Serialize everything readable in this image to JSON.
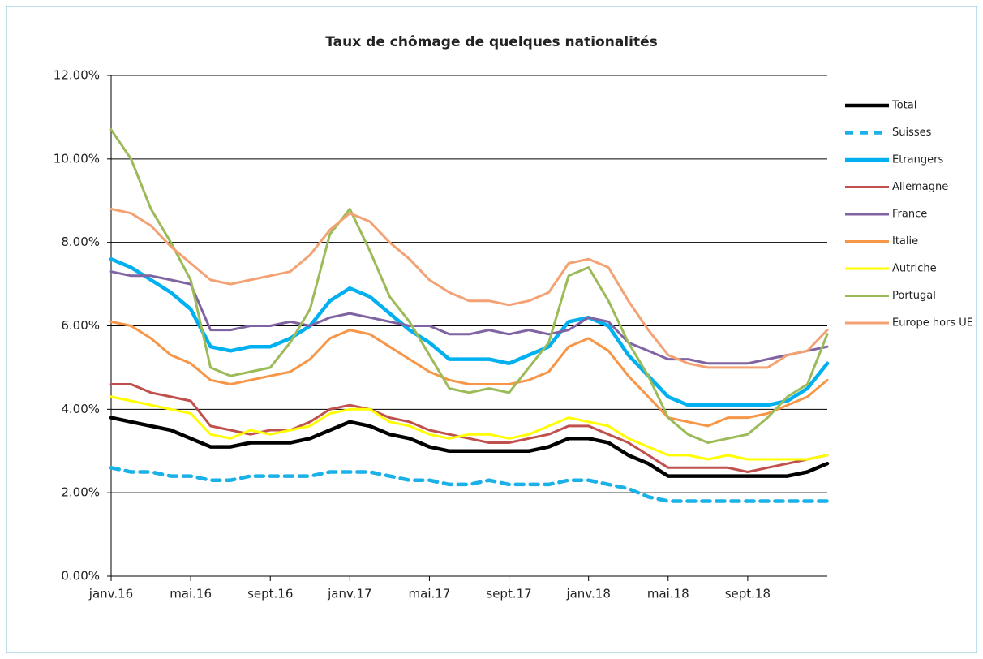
{
  "chart_data": {
    "type": "line",
    "title": "Taux de chômage de quelques nationalités",
    "categories": [
      "janv.16",
      null,
      null,
      null,
      "mai.16",
      null,
      null,
      null,
      "sept.16",
      null,
      null,
      null,
      "janv.17",
      null,
      null,
      null,
      "mai.17",
      null,
      null,
      null,
      "sept.17",
      null,
      null,
      null,
      "janv.18",
      null,
      null,
      null,
      "mai.18",
      null,
      null,
      null,
      "sept.18",
      null,
      null,
      null,
      null
    ],
    "ylim": [
      0,
      12
    ],
    "yticks": [
      {
        "value": 0,
        "label": "0.00%"
      },
      {
        "value": 2,
        "label": "2.00%"
      },
      {
        "value": 4,
        "label": "4.00%"
      },
      {
        "value": 6,
        "label": "6.00%"
      },
      {
        "value": 8,
        "label": "8.00%"
      },
      {
        "value": 10,
        "label": "10.00%"
      },
      {
        "value": 12,
        "label": "12.00%"
      }
    ],
    "grid": true,
    "legend": "right",
    "series": [
      {
        "name": "Total",
        "color": "#000000",
        "style": "solid",
        "values": [
          3.8,
          3.7,
          3.6,
          3.5,
          3.3,
          3.1,
          3.1,
          3.2,
          3.2,
          3.2,
          3.3,
          3.5,
          3.7,
          3.6,
          3.4,
          3.3,
          3.1,
          3.0,
          3.0,
          3.0,
          3.0,
          3.0,
          3.1,
          3.3,
          3.3,
          3.2,
          2.9,
          2.7,
          2.4,
          2.4,
          2.4,
          2.4,
          2.4,
          2.4,
          2.4,
          2.5,
          2.7
        ]
      },
      {
        "name": "Suisses",
        "color": "#1ab0e8",
        "style": "dashed",
        "values": [
          2.6,
          2.5,
          2.5,
          2.4,
          2.4,
          2.3,
          2.3,
          2.4,
          2.4,
          2.4,
          2.4,
          2.5,
          2.5,
          2.5,
          2.4,
          2.3,
          2.3,
          2.2,
          2.2,
          2.3,
          2.2,
          2.2,
          2.2,
          2.3,
          2.3,
          2.2,
          2.1,
          1.9,
          1.8,
          1.8,
          1.8,
          1.8,
          1.8,
          1.8,
          1.8,
          1.8,
          1.8
        ]
      },
      {
        "name": "Etrangers",
        "color": "#00b0f0",
        "style": "solid",
        "values": [
          7.6,
          7.4,
          7.1,
          6.8,
          6.4,
          5.5,
          5.4,
          5.5,
          5.5,
          5.7,
          6.0,
          6.6,
          6.9,
          6.7,
          6.3,
          5.9,
          5.6,
          5.2,
          5.2,
          5.2,
          5.1,
          5.3,
          5.5,
          6.1,
          6.2,
          6.0,
          5.3,
          4.8,
          4.3,
          4.1,
          4.1,
          4.1,
          4.1,
          4.1,
          4.2,
          4.5,
          5.1
        ]
      },
      {
        "name": "Allemagne",
        "color": "#c0504d",
        "style": "solid",
        "values": [
          4.6,
          4.6,
          4.4,
          4.3,
          4.2,
          3.6,
          3.5,
          3.4,
          3.5,
          3.5,
          3.7,
          4.0,
          4.1,
          4.0,
          3.8,
          3.7,
          3.5,
          3.4,
          3.3,
          3.2,
          3.2,
          3.3,
          3.4,
          3.6,
          3.6,
          3.4,
          3.2,
          2.9,
          2.6,
          2.6,
          2.6,
          2.6,
          2.5,
          2.6,
          2.7,
          2.8,
          2.9
        ]
      },
      {
        "name": "France",
        "color": "#8064a2",
        "style": "solid",
        "values": [
          7.3,
          7.2,
          7.2,
          7.1,
          7.0,
          5.9,
          5.9,
          6.0,
          6.0,
          6.1,
          6.0,
          6.2,
          6.3,
          6.2,
          6.1,
          6.0,
          6.0,
          5.8,
          5.8,
          5.9,
          5.8,
          5.9,
          5.8,
          5.9,
          6.2,
          6.1,
          5.6,
          5.4,
          5.2,
          5.2,
          5.1,
          5.1,
          5.1,
          5.2,
          5.3,
          5.4,
          5.5
        ]
      },
      {
        "name": "Italie",
        "color": "#f79646",
        "style": "solid",
        "values": [
          6.1,
          6.0,
          5.7,
          5.3,
          5.1,
          4.7,
          4.6,
          4.7,
          4.8,
          4.9,
          5.2,
          5.7,
          5.9,
          5.8,
          5.5,
          5.2,
          4.9,
          4.7,
          4.6,
          4.6,
          4.6,
          4.7,
          4.9,
          5.5,
          5.7,
          5.4,
          4.8,
          4.3,
          3.8,
          3.7,
          3.6,
          3.8,
          3.8,
          3.9,
          4.1,
          4.3,
          4.7
        ]
      },
      {
        "name": "Autriche",
        "color": "#ffff00",
        "style": "solid",
        "values": [
          4.3,
          4.2,
          4.1,
          4.0,
          3.9,
          3.4,
          3.3,
          3.5,
          3.4,
          3.5,
          3.6,
          3.9,
          4.0,
          4.0,
          3.7,
          3.6,
          3.4,
          3.3,
          3.4,
          3.4,
          3.3,
          3.4,
          3.6,
          3.8,
          3.7,
          3.6,
          3.3,
          3.1,
          2.9,
          2.9,
          2.8,
          2.9,
          2.8,
          2.8,
          2.8,
          2.8,
          2.9
        ]
      },
      {
        "name": "Portugal",
        "color": "#9bbb59",
        "style": "solid",
        "values": [
          10.7,
          10.0,
          8.8,
          8.0,
          7.1,
          5.0,
          4.8,
          4.9,
          5.0,
          5.6,
          6.4,
          8.2,
          8.8,
          7.8,
          6.7,
          6.1,
          5.3,
          4.5,
          4.4,
          4.5,
          4.4,
          5.0,
          5.6,
          7.2,
          7.4,
          6.6,
          5.6,
          4.8,
          3.8,
          3.4,
          3.2,
          3.3,
          3.4,
          3.8,
          4.3,
          4.6,
          5.8
        ]
      },
      {
        "name": "Europe hors UE",
        "color": "#f4a273",
        "style": "solid",
        "values": [
          8.8,
          8.7,
          8.4,
          7.9,
          7.5,
          7.1,
          7.0,
          7.1,
          7.2,
          7.3,
          7.7,
          8.3,
          8.7,
          8.5,
          8.0,
          7.6,
          7.1,
          6.8,
          6.6,
          6.6,
          6.5,
          6.6,
          6.8,
          7.5,
          7.6,
          7.4,
          6.6,
          5.9,
          5.3,
          5.1,
          5.0,
          5.0,
          5.0,
          5.0,
          5.3,
          5.4,
          5.9
        ]
      }
    ]
  }
}
